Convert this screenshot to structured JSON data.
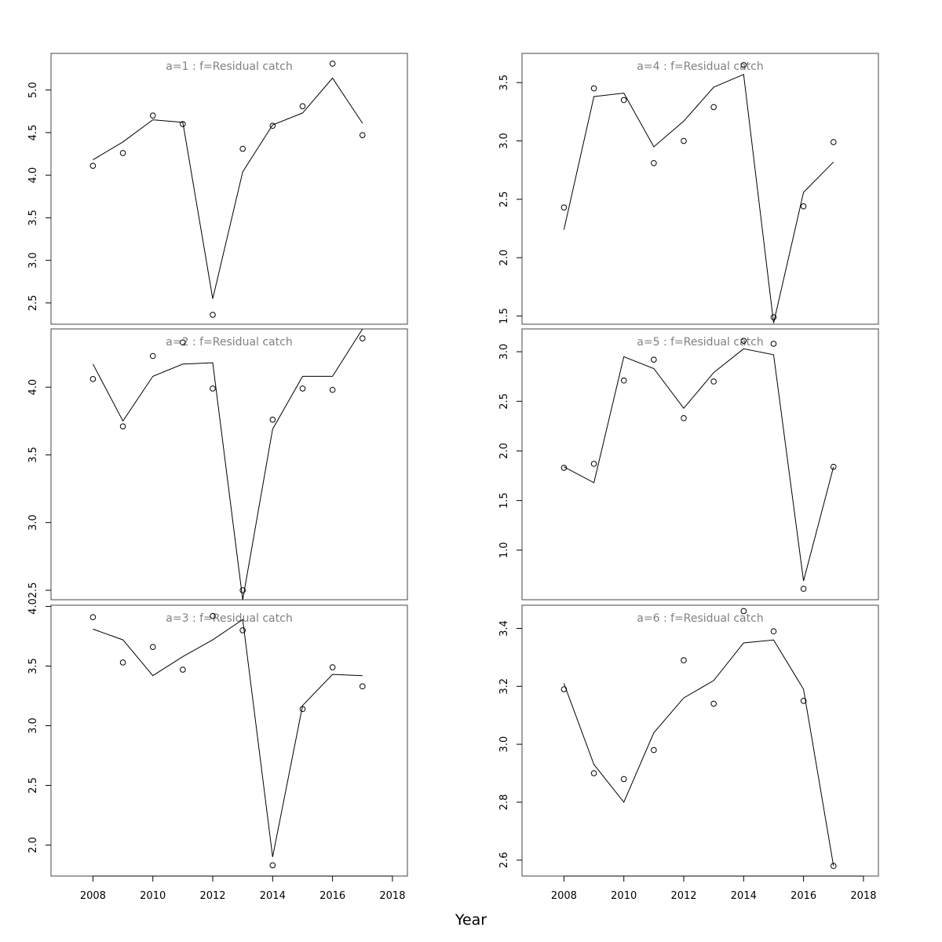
{
  "xlabel": "Year",
  "x_ticks": [
    2008,
    2010,
    2012,
    2014,
    2016,
    2018
  ],
  "chart_data": [
    {
      "type": "line",
      "title": "a=1  :  f=Residual catch",
      "xlim": [
        2006.6,
        2018.5
      ],
      "ylim": [
        2.25,
        5.43
      ],
      "yticks": [
        "2.5",
        "3.0",
        "3.5",
        "4.0",
        "4.5",
        "5.0"
      ],
      "x": [
        2008,
        2009,
        2010,
        2011,
        2012,
        2013,
        2014,
        2015,
        2016,
        2017
      ],
      "series": [
        {
          "kind": "line",
          "values": [
            4.18,
            4.39,
            4.65,
            4.62,
            2.55,
            4.04,
            4.59,
            4.73,
            5.14,
            4.61
          ]
        },
        {
          "kind": "points",
          "values": [
            4.11,
            4.26,
            4.7,
            4.6,
            2.36,
            4.31,
            4.58,
            4.81,
            5.31,
            4.47
          ]
        }
      ]
    },
    {
      "type": "line",
      "title": "a=4  :  f=Residual catch",
      "xlim": [
        2006.6,
        2018.5
      ],
      "ylim": [
        1.43,
        3.75
      ],
      "yticks": [
        "1.5",
        "2.0",
        "2.5",
        "3.0",
        "3.5"
      ],
      "x": [
        2008,
        2009,
        2010,
        2011,
        2012,
        2013,
        2014,
        2015,
        2016,
        2017
      ],
      "series": [
        {
          "kind": "line",
          "values": [
            2.24,
            3.38,
            3.41,
            2.95,
            3.17,
            3.46,
            3.57,
            1.44,
            2.56,
            2.82
          ]
        },
        {
          "kind": "points",
          "values": [
            2.43,
            3.45,
            3.35,
            2.81,
            3.0,
            3.29,
            3.65,
            1.49,
            2.44,
            2.99
          ]
        }
      ]
    },
    {
      "type": "line",
      "title": "a=2  :  f=Residual catch",
      "xlim": [
        2006.6,
        2018.5
      ],
      "ylim": [
        2.43,
        4.43
      ],
      "yticks": [
        "2.5",
        "3.0",
        "3.5",
        "4.0"
      ],
      "x": [
        2008,
        2009,
        2010,
        2011,
        2012,
        2013,
        2014,
        2015,
        2016,
        2017
      ],
      "series": [
        {
          "kind": "line",
          "values": [
            4.17,
            3.75,
            4.08,
            4.17,
            4.18,
            2.43,
            3.69,
            4.08,
            4.08,
            4.43
          ]
        },
        {
          "kind": "points",
          "values": [
            4.06,
            3.71,
            4.23,
            4.33,
            3.99,
            2.5,
            3.76,
            3.99,
            3.98,
            4.36
          ]
        }
      ]
    },
    {
      "type": "line",
      "title": "a=5  :  f=Residual catch",
      "xlim": [
        2006.6,
        2018.5
      ],
      "ylim": [
        0.5,
        3.23
      ],
      "yticks": [
        "1.0",
        "1.5",
        "2.0",
        "2.5",
        "3.0"
      ],
      "x": [
        2008,
        2009,
        2010,
        2011,
        2012,
        2013,
        2014,
        2015,
        2016,
        2017
      ],
      "series": [
        {
          "kind": "line",
          "values": [
            1.84,
            1.68,
            2.95,
            2.83,
            2.43,
            2.79,
            3.03,
            2.97,
            0.69,
            1.84
          ]
        },
        {
          "kind": "points",
          "values": [
            1.83,
            1.87,
            2.71,
            2.92,
            2.33,
            2.7,
            3.11,
            3.08,
            0.61,
            1.84
          ]
        }
      ]
    },
    {
      "type": "line",
      "title": "a=3  :  f=Residual catch",
      "xlim": [
        2006.6,
        2018.5
      ],
      "ylim": [
        1.74,
        4.01
      ],
      "yticks": [
        "2.0",
        "2.5",
        "3.0",
        "3.5",
        "4.0"
      ],
      "x": [
        2008,
        2009,
        2010,
        2011,
        2012,
        2013,
        2014,
        2015,
        2016,
        2017
      ],
      "series": [
        {
          "kind": "line",
          "values": [
            3.81,
            3.72,
            3.42,
            3.58,
            3.72,
            3.89,
            1.9,
            3.17,
            3.43,
            3.42
          ]
        },
        {
          "kind": "points",
          "values": [
            3.91,
            3.53,
            3.66,
            3.47,
            3.92,
            3.8,
            1.83,
            3.14,
            3.49,
            3.33
          ]
        }
      ]
    },
    {
      "type": "line",
      "title": "a=6  :  f=Residual catch",
      "xlim": [
        2006.6,
        2018.5
      ],
      "ylim": [
        2.545,
        3.48
      ],
      "yticks": [
        "2.6",
        "2.8",
        "3.0",
        "3.2",
        "3.4"
      ],
      "x": [
        2008,
        2009,
        2010,
        2011,
        2012,
        2013,
        2014,
        2015,
        2016,
        2017
      ],
      "series": [
        {
          "kind": "line",
          "values": [
            3.21,
            2.93,
            2.8,
            3.04,
            3.16,
            3.22,
            3.35,
            3.36,
            3.19,
            2.58
          ]
        },
        {
          "kind": "points",
          "values": [
            3.19,
            2.9,
            2.88,
            2.98,
            3.29,
            3.14,
            3.46,
            3.39,
            3.15,
            2.58
          ]
        }
      ]
    }
  ]
}
